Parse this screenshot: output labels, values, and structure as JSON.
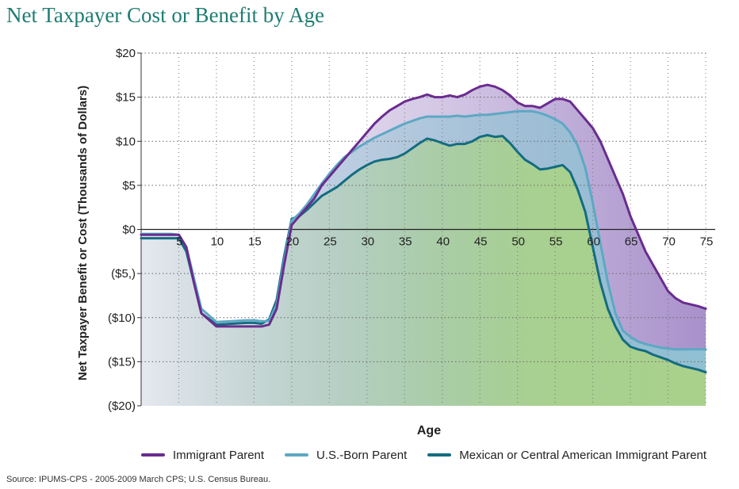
{
  "title": "Net Taxpayer Cost or Benefit by Age",
  "source": "Source:  IPUMS-CPS - 2005-2009 March CPS; U.S. Census Bureau.",
  "chart_data": {
    "type": "line",
    "xlabel": "Age",
    "ylabel": "Net Taxpayer Benefit or Cost (Thousands of Dollars)",
    "xlim": [
      0,
      75
    ],
    "ylim": [
      -20,
      20
    ],
    "x_ticks": [
      5,
      10,
      15,
      20,
      25,
      30,
      35,
      40,
      45,
      50,
      55,
      60,
      65,
      70,
      75
    ],
    "x_tick_labels": [
      "5",
      "10",
      "15",
      "20",
      "25",
      "30",
      "35",
      "40",
      "45",
      "50",
      "55",
      "60",
      "65",
      "70",
      "75"
    ],
    "y_ticks": [
      20,
      15,
      10,
      5,
      0,
      -5,
      -10,
      -15,
      -20
    ],
    "y_tick_labels": [
      "$20",
      "$15",
      "$10",
      "$5",
      "$0",
      "($5,)",
      "($10)",
      "($15)",
      "($20)"
    ],
    "grid": "horizontal dotted",
    "legend_position": "bottom",
    "series": [
      {
        "name": "Immigrant Parent",
        "color": "#6a2c8f",
        "fill": "#a48bc8",
        "x": [
          0,
          4,
          5,
          6,
          7,
          8,
          10,
          12,
          14,
          15,
          16,
          17,
          18,
          19,
          20,
          21,
          22,
          23,
          24,
          25,
          26,
          27,
          28,
          29,
          30,
          31,
          32,
          33,
          34,
          35,
          36,
          37,
          38,
          39,
          40,
          41,
          42,
          43,
          44,
          45,
          46,
          47,
          48,
          49,
          50,
          51,
          52,
          53,
          54,
          55,
          56,
          57,
          58,
          59,
          60,
          61,
          62,
          63,
          64,
          65,
          66,
          67,
          68,
          69,
          70,
          71,
          72,
          73,
          74,
          75
        ],
        "y": [
          -0.6,
          -0.6,
          -0.6,
          -2.0,
          -6.0,
          -9.5,
          -11.0,
          -11.0,
          -11.0,
          -11.0,
          -11.0,
          -10.8,
          -9.0,
          -4.0,
          0.5,
          1.5,
          2.5,
          3.5,
          5.0,
          6.0,
          7.0,
          8.0,
          9.0,
          10.0,
          11.0,
          12.0,
          12.8,
          13.5,
          14.0,
          14.5,
          14.8,
          15.0,
          15.3,
          15.0,
          15.0,
          15.2,
          15.0,
          15.3,
          15.8,
          16.2,
          16.4,
          16.2,
          15.8,
          15.2,
          14.4,
          14.0,
          14.0,
          13.8,
          14.3,
          14.8,
          14.8,
          14.5,
          13.5,
          12.5,
          11.5,
          10.0,
          8.0,
          6.0,
          4.0,
          1.5,
          -0.5,
          -2.5,
          -4.0,
          -5.5,
          -7.0,
          -7.8,
          -8.3,
          -8.5,
          -8.7,
          -9.0
        ]
      },
      {
        "name": "U.S.-Born Parent",
        "color": "#5ea8c3",
        "fill": "#8fc3d3",
        "x": [
          0,
          4,
          5,
          6,
          7,
          8,
          10,
          12,
          14,
          15,
          16,
          17,
          18,
          19,
          20,
          21,
          22,
          23,
          24,
          25,
          26,
          27,
          28,
          29,
          30,
          31,
          32,
          33,
          34,
          35,
          36,
          37,
          38,
          39,
          40,
          41,
          42,
          43,
          44,
          45,
          46,
          47,
          48,
          49,
          50,
          51,
          52,
          53,
          54,
          55,
          56,
          57,
          58,
          59,
          60,
          61,
          62,
          63,
          64,
          65,
          66,
          67,
          68,
          69,
          70,
          71,
          72,
          73,
          74,
          75
        ],
        "y": [
          -0.5,
          -0.5,
          -0.6,
          -2.0,
          -5.5,
          -9.0,
          -10.5,
          -10.4,
          -10.3,
          -10.3,
          -10.4,
          -10.4,
          -8.5,
          -3.5,
          1.0,
          1.8,
          2.8,
          4.0,
          5.2,
          6.3,
          7.3,
          8.2,
          8.8,
          9.4,
          9.9,
          10.4,
          10.8,
          11.2,
          11.6,
          12.0,
          12.3,
          12.6,
          12.8,
          12.8,
          12.8,
          12.8,
          12.9,
          12.8,
          12.9,
          13.0,
          13.0,
          13.1,
          13.2,
          13.3,
          13.4,
          13.4,
          13.4,
          13.2,
          12.9,
          12.5,
          12.0,
          11.0,
          9.5,
          7.0,
          3.0,
          -1.5,
          -6.0,
          -9.5,
          -11.5,
          -12.2,
          -12.7,
          -13.0,
          -13.2,
          -13.4,
          -13.5,
          -13.6,
          -13.6,
          -13.6,
          -13.6,
          -13.6
        ]
      },
      {
        "name": "Mexican or Central American Immigrant Parent",
        "color": "#146c80",
        "fill": "#a9d18c",
        "x": [
          0,
          4,
          5,
          6,
          7,
          8,
          10,
          12,
          14,
          15,
          16,
          17,
          18,
          19,
          20,
          21,
          22,
          23,
          24,
          25,
          26,
          27,
          28,
          29,
          30,
          31,
          32,
          33,
          34,
          35,
          36,
          37,
          38,
          39,
          40,
          41,
          42,
          43,
          44,
          45,
          46,
          47,
          48,
          49,
          50,
          51,
          52,
          53,
          54,
          55,
          56,
          57,
          58,
          59,
          60,
          61,
          62,
          63,
          64,
          65,
          66,
          67,
          68,
          69,
          70,
          71,
          72,
          73,
          74,
          75
        ],
        "y": [
          -1.0,
          -1.0,
          -1.0,
          -2.5,
          -6.0,
          -9.5,
          -10.8,
          -10.7,
          -10.6,
          -10.6,
          -10.7,
          -10.2,
          -8.0,
          -3.0,
          1.2,
          1.5,
          2.2,
          3.0,
          3.8,
          4.3,
          4.8,
          5.5,
          6.2,
          6.8,
          7.3,
          7.7,
          7.9,
          8.0,
          8.2,
          8.6,
          9.2,
          9.8,
          10.3,
          10.1,
          9.8,
          9.5,
          9.7,
          9.7,
          10.0,
          10.5,
          10.7,
          10.5,
          10.6,
          9.8,
          8.8,
          7.9,
          7.4,
          6.8,
          6.9,
          7.1,
          7.3,
          6.5,
          4.5,
          2.0,
          -2.0,
          -6.0,
          -9.0,
          -11.0,
          -12.5,
          -13.3,
          -13.6,
          -13.8,
          -14.2,
          -14.5,
          -14.8,
          -15.2,
          -15.5,
          -15.7,
          -15.9,
          -16.2
        ]
      }
    ]
  }
}
